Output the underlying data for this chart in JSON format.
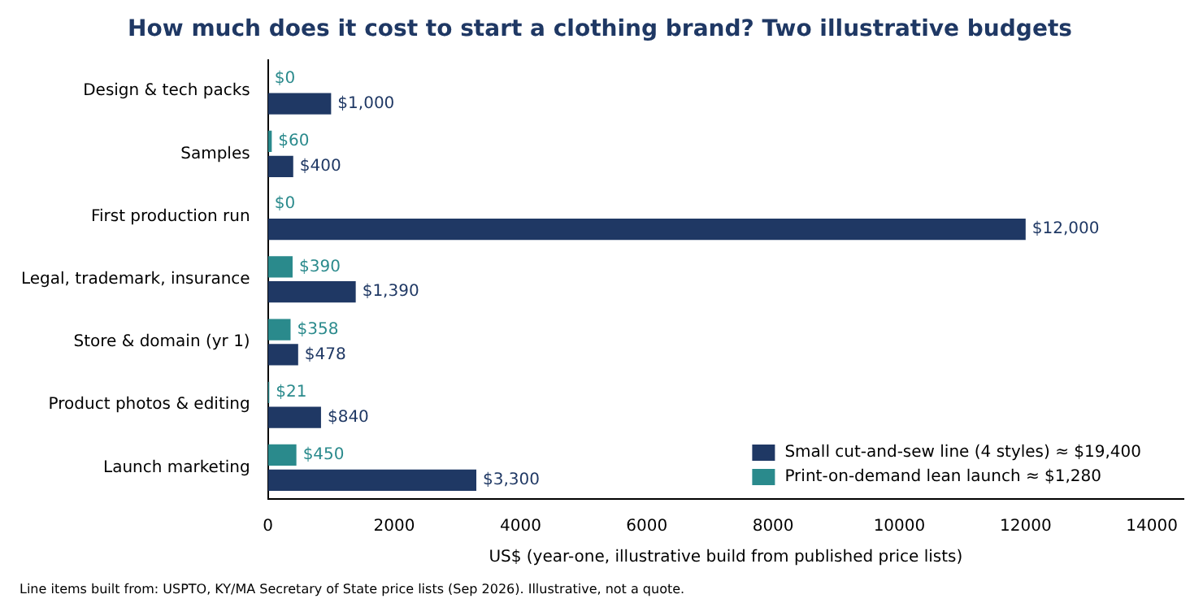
{
  "chart_data": {
    "type": "bar",
    "orientation": "horizontal",
    "title": "How much does it cost to start a clothing brand? Two illustrative budgets",
    "categories": [
      "Design & tech packs",
      "Samples",
      "First production run",
      "Legal, trademark, insurance",
      "Store & domain (yr 1)",
      "Product photos & editing",
      "Launch marketing"
    ],
    "series": [
      {
        "name": "Print-on-demand lean launch ≈ $1,280",
        "color": "#2a8a8c",
        "values": [
          0,
          60,
          0,
          390,
          358,
          21,
          450
        ],
        "value_labels": [
          "$0",
          "$60",
          "$0",
          "$390",
          "$358",
          "$21",
          "$450"
        ]
      },
      {
        "name": "Small cut-and-sew line (4 styles) ≈ $19,400",
        "color": "#1f3864",
        "values": [
          1000,
          400,
          12000,
          1390,
          478,
          840,
          3300
        ],
        "value_labels": [
          "$1,000",
          "$400",
          "$12,000",
          "$1,390",
          "$478",
          "$840",
          "$3,300"
        ]
      }
    ],
    "xlabel": "US$ (year-one, illustrative build from published price lists)",
    "xlim": [
      0,
      14500
    ],
    "xticks": [
      0,
      2000,
      4000,
      6000,
      8000,
      10000,
      12000,
      14000
    ],
    "legend": "bottom right",
    "annotations": [
      "Line items built from: USPTO, KY/MA Secretary of State price lists (Sep 2026). Illustrative, not a quote."
    ]
  }
}
